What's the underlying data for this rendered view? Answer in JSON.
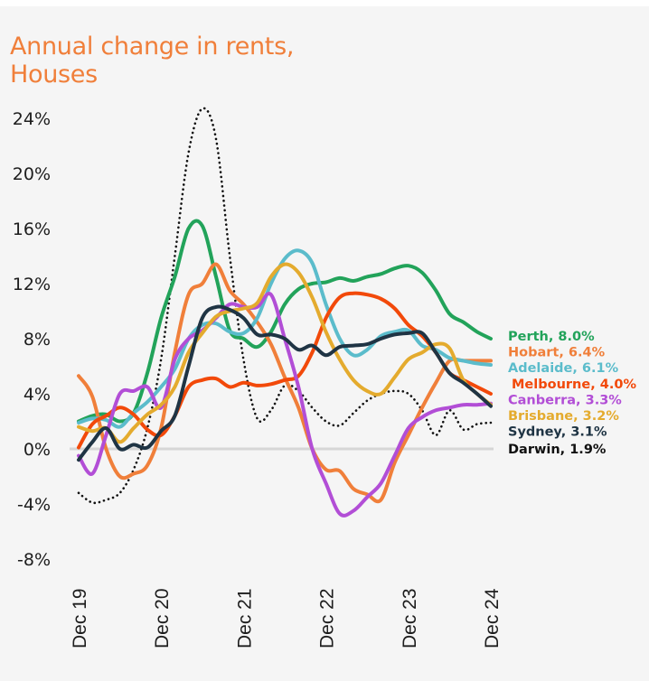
{
  "chart_data": {
    "type": "line",
    "title": "Annual change in rents,",
    "subtitle": "Houses",
    "xlabel": "",
    "ylabel": "",
    "x_unit": "months since Dec 2019",
    "xlim": [
      0,
      60
    ],
    "ylim": [
      -8,
      24
    ],
    "grid": false,
    "zero_line": true,
    "legend_position": "right (end-of-line labels)",
    "yticks": [
      24,
      20,
      16,
      12,
      8,
      4,
      0,
      -4,
      -8
    ],
    "ytick_labels": [
      "24%",
      "20%",
      "16%",
      "12%",
      "8%",
      "4%",
      "0%",
      "-4%",
      "-8%"
    ],
    "xticks": [
      0,
      12,
      24,
      36,
      48,
      60
    ],
    "xtick_labels": [
      "Dec 19",
      "Dec 20",
      "Dec 21",
      "Dec 22",
      "Dec 23",
      "Dec 24"
    ],
    "x": [
      0,
      2,
      4,
      6,
      8,
      10,
      12,
      14,
      16,
      18,
      20,
      22,
      24,
      26,
      28,
      30,
      32,
      34,
      36,
      38,
      40,
      42,
      44,
      46,
      48,
      50,
      52,
      54,
      56,
      58,
      60
    ],
    "series": [
      {
        "name": "Darwin",
        "label": "Darwin, 1.9%",
        "color": "#111111",
        "dash": true,
        "values": [
          -3.2,
          -3.9,
          -3.7,
          -3.2,
          -1.5,
          1.5,
          6.5,
          14.0,
          21.5,
          24.7,
          22.5,
          14.0,
          6.5,
          2.2,
          2.8,
          4.6,
          4.2,
          3.0,
          2.0,
          1.7,
          2.6,
          3.5,
          4.0,
          4.2,
          4.0,
          2.8,
          1.0,
          2.8,
          1.4,
          1.8,
          1.9
        ]
      },
      {
        "name": "Perth",
        "label": "Perth, 8.0%",
        "color": "#22a35a",
        "values": [
          2.0,
          2.4,
          2.5,
          2.0,
          2.6,
          5.5,
          9.5,
          12.5,
          16.0,
          16.2,
          12.5,
          8.6,
          8.0,
          7.4,
          8.5,
          10.5,
          11.6,
          12.0,
          12.1,
          12.4,
          12.2,
          12.5,
          12.7,
          13.1,
          13.3,
          12.8,
          11.5,
          9.8,
          9.2,
          8.5,
          8.0
        ]
      },
      {
        "name": "Hobart",
        "label": "Hobart, 6.4%",
        "color": "#f07f3a",
        "values": [
          5.3,
          3.8,
          0.0,
          -2.0,
          -1.8,
          -1.2,
          1.5,
          7.0,
          11.2,
          12.0,
          13.4,
          11.5,
          10.5,
          9.2,
          7.6,
          5.2,
          3.0,
          0.0,
          -1.5,
          -1.6,
          -2.9,
          -3.3,
          -3.7,
          -1.0,
          1.0,
          3.0,
          4.8,
          6.4,
          6.4,
          6.4,
          6.4
        ]
      },
      {
        "name": "Adelaide",
        "label": "Adelaide, 6.1%",
        "color": "#5bbccb",
        "values": [
          1.9,
          2.2,
          2.1,
          1.6,
          2.6,
          3.4,
          4.5,
          5.8,
          8.0,
          9.0,
          9.1,
          8.5,
          8.4,
          9.5,
          12.0,
          13.8,
          14.4,
          13.5,
          10.5,
          8.0,
          6.8,
          7.2,
          8.2,
          8.5,
          8.6,
          7.5,
          7.2,
          6.6,
          6.4,
          6.2,
          6.1
        ]
      },
      {
        "name": "Melbourne",
        "label": "Melbourne, 4.0%",
        "color": "#f2490a",
        "values": [
          0.1,
          1.8,
          2.4,
          3.0,
          2.5,
          1.4,
          1.0,
          2.4,
          4.5,
          5.0,
          5.1,
          4.5,
          4.8,
          4.6,
          4.7,
          5.0,
          5.3,
          7.0,
          9.5,
          11.0,
          11.3,
          11.2,
          10.9,
          10.2,
          9.0,
          8.2,
          7.0,
          5.5,
          5.0,
          4.5,
          4.0
        ]
      },
      {
        "name": "Canberra",
        "label": "Canberra, 3.3%",
        "color": "#b24ed6",
        "values": [
          -0.5,
          -1.8,
          1.0,
          4.0,
          4.2,
          4.5,
          3.0,
          6.5,
          8.0,
          8.6,
          9.5,
          10.5,
          10.3,
          10.3,
          11.2,
          8.0,
          4.5,
          0.0,
          -2.5,
          -4.7,
          -4.5,
          -3.5,
          -2.5,
          -0.5,
          1.5,
          2.3,
          2.8,
          3.0,
          3.2,
          3.2,
          3.3
        ]
      },
      {
        "name": "Brisbane",
        "label": "Brisbane, 3.2%",
        "color": "#e4ab2e",
        "values": [
          1.6,
          1.3,
          1.5,
          0.5,
          1.5,
          2.5,
          3.2,
          4.5,
          7.0,
          8.4,
          9.6,
          10.0,
          10.2,
          10.6,
          12.5,
          13.4,
          12.8,
          11.0,
          8.5,
          6.5,
          5.0,
          4.2,
          4.0,
          5.2,
          6.5,
          7.0,
          7.6,
          7.3,
          5.0,
          4.0,
          3.2
        ]
      },
      {
        "name": "Sydney",
        "label": "Sydney, 3.1%",
        "color": "#1f3444",
        "values": [
          -0.8,
          0.5,
          1.5,
          0.0,
          0.3,
          0.1,
          1.3,
          2.4,
          6.0,
          9.5,
          10.3,
          10.1,
          9.5,
          8.3,
          8.3,
          8.0,
          7.2,
          7.5,
          6.8,
          7.4,
          7.5,
          7.6,
          8.0,
          8.3,
          8.4,
          8.4,
          7.0,
          5.5,
          4.8,
          4.0,
          3.1
        ]
      }
    ]
  }
}
